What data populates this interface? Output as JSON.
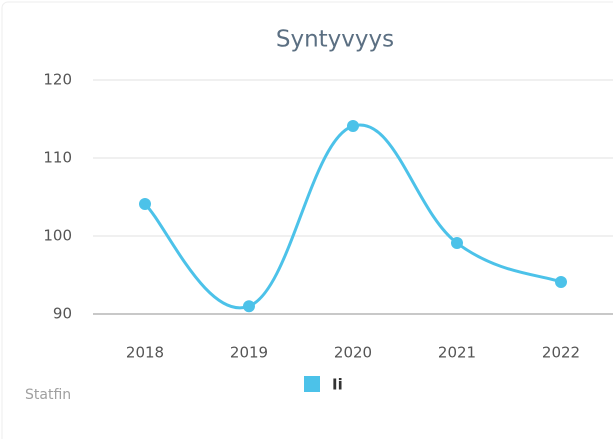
{
  "chart_data": {
    "type": "line",
    "title": "Syntyvyys",
    "credits": "Statfin",
    "categories": [
      "2018",
      "2019",
      "2020",
      "2021",
      "2022"
    ],
    "series": [
      {
        "name": "Ii",
        "color": "#4cc2e9",
        "values": [
          104.1,
          91,
          114.1,
          99.1,
          94.1
        ]
      }
    ],
    "ylim": [
      90,
      120
    ],
    "yticks": [
      90,
      100,
      110,
      120
    ],
    "grid": true,
    "smooth": true
  }
}
